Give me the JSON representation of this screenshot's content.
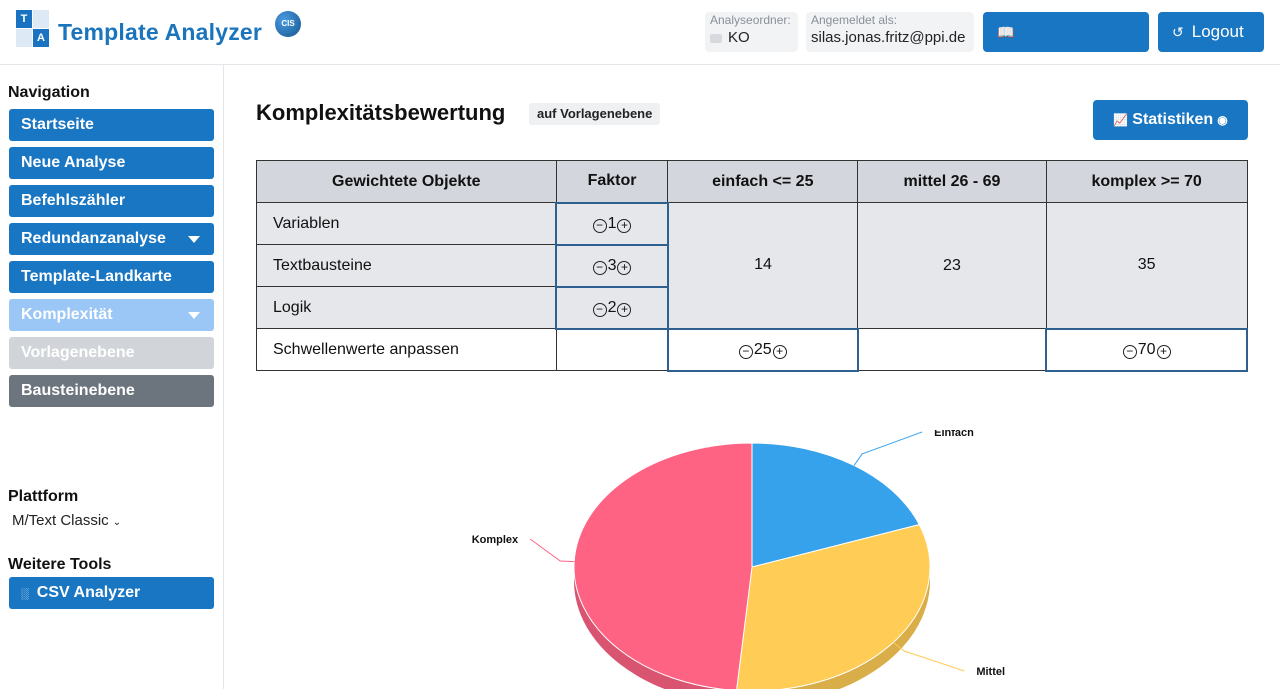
{
  "header": {
    "logo_letters": [
      "T",
      "A"
    ],
    "app_title": "Template Analyzer",
    "badge": "CIS",
    "folder_label": "Analyseordner:",
    "folder_value": "KO",
    "user_label": "Angemeldet als:",
    "user_value": "silas.jonas.fritz@ppi.de",
    "docs_button": "Dokumentation",
    "logout_button": "Logout"
  },
  "sidebar": {
    "nav_heading": "Navigation",
    "items": [
      {
        "label": "Startseite"
      },
      {
        "label": "Neue Analyse"
      },
      {
        "label": "Befehlszähler"
      },
      {
        "label": "Redundanzanalyse"
      },
      {
        "label": "Template-Landkarte"
      },
      {
        "label": "Komplexität"
      },
      {
        "label": "Vorlagenebene"
      },
      {
        "label": "Bausteinebene"
      }
    ],
    "platform_heading": "Plattform",
    "platform_value": "M/Text Classic",
    "tools_heading": "Weitere Tools",
    "csv_button": "CSV Analyzer"
  },
  "main": {
    "title": "Komplexitätsbewertung",
    "level_badge": "auf Vorlagenebene",
    "stats_button": "Statistiken",
    "table": {
      "headers": [
        "Gewichtete Objekte",
        "Faktor",
        "einfach <= 25",
        "mittel 26 - 69",
        "komplex >= 70"
      ],
      "rows": [
        {
          "name": "Variablen",
          "factor": "1"
        },
        {
          "name": "Textbausteine",
          "factor": "3"
        },
        {
          "name": "Logik",
          "factor": "2"
        }
      ],
      "counts": {
        "einfach": "14",
        "mittel": "23",
        "komplex": "35"
      },
      "threshold_row_label": "Schwellenwerte anpassen",
      "threshold_simple": "25",
      "threshold_complex": "70"
    }
  },
  "colors": {
    "primary": "#1976c2",
    "einfach": "#36a2eb",
    "mittel": "#ffcd56",
    "komplex": "#ff6384"
  },
  "chart_data": {
    "type": "pie",
    "labels": [
      "Einfach",
      "Mittel",
      "Komplex"
    ],
    "values": [
      14,
      23,
      35
    ],
    "colors": [
      "#36a2eb",
      "#ffcd56",
      "#ff6384"
    ]
  }
}
